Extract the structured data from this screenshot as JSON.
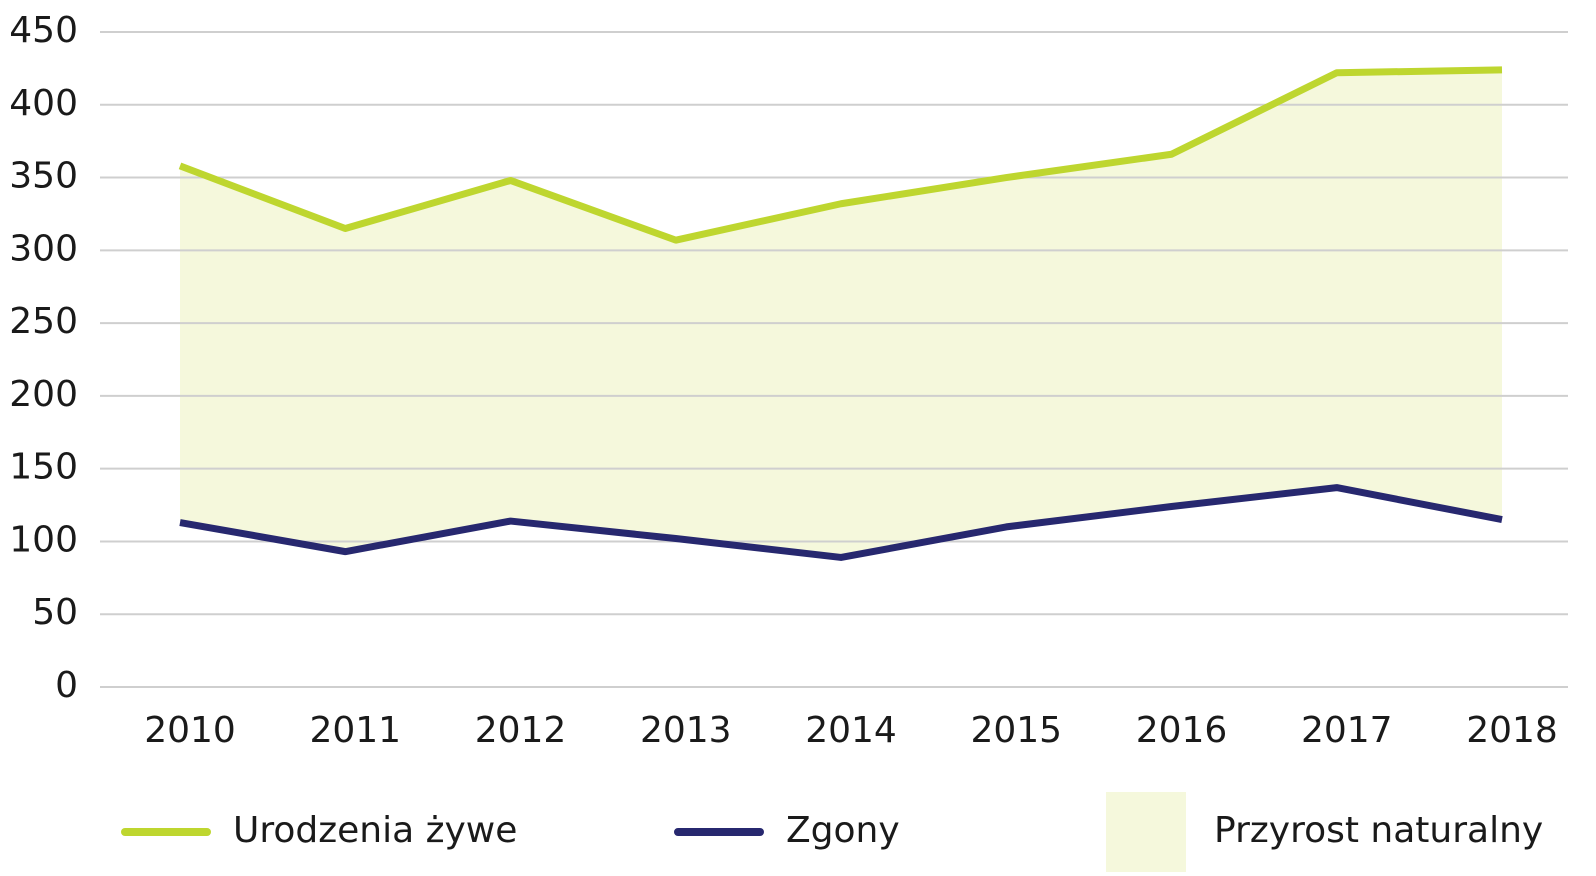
{
  "chart_data": {
    "type": "line",
    "categories": [
      "2010",
      "2011",
      "2012",
      "2013",
      "2014",
      "2015",
      "2016",
      "2017",
      "2018"
    ],
    "series": [
      {
        "name": "Urodzenia żywe",
        "color": "#bed62f",
        "values": [
          358,
          315,
          348,
          307,
          332,
          350,
          366,
          422,
          424
        ]
      },
      {
        "name": "Zgony",
        "color": "#27286f",
        "values": [
          113,
          93,
          114,
          102,
          89,
          110,
          124,
          137,
          115
        ]
      }
    ],
    "fill_between": {
      "name": "Przyrost naturalny",
      "color": "#f5f8dc"
    },
    "ylim": [
      0,
      450
    ],
    "yticks": [
      0,
      50,
      100,
      150,
      200,
      250,
      300,
      350,
      400,
      450
    ],
    "grid": true
  }
}
